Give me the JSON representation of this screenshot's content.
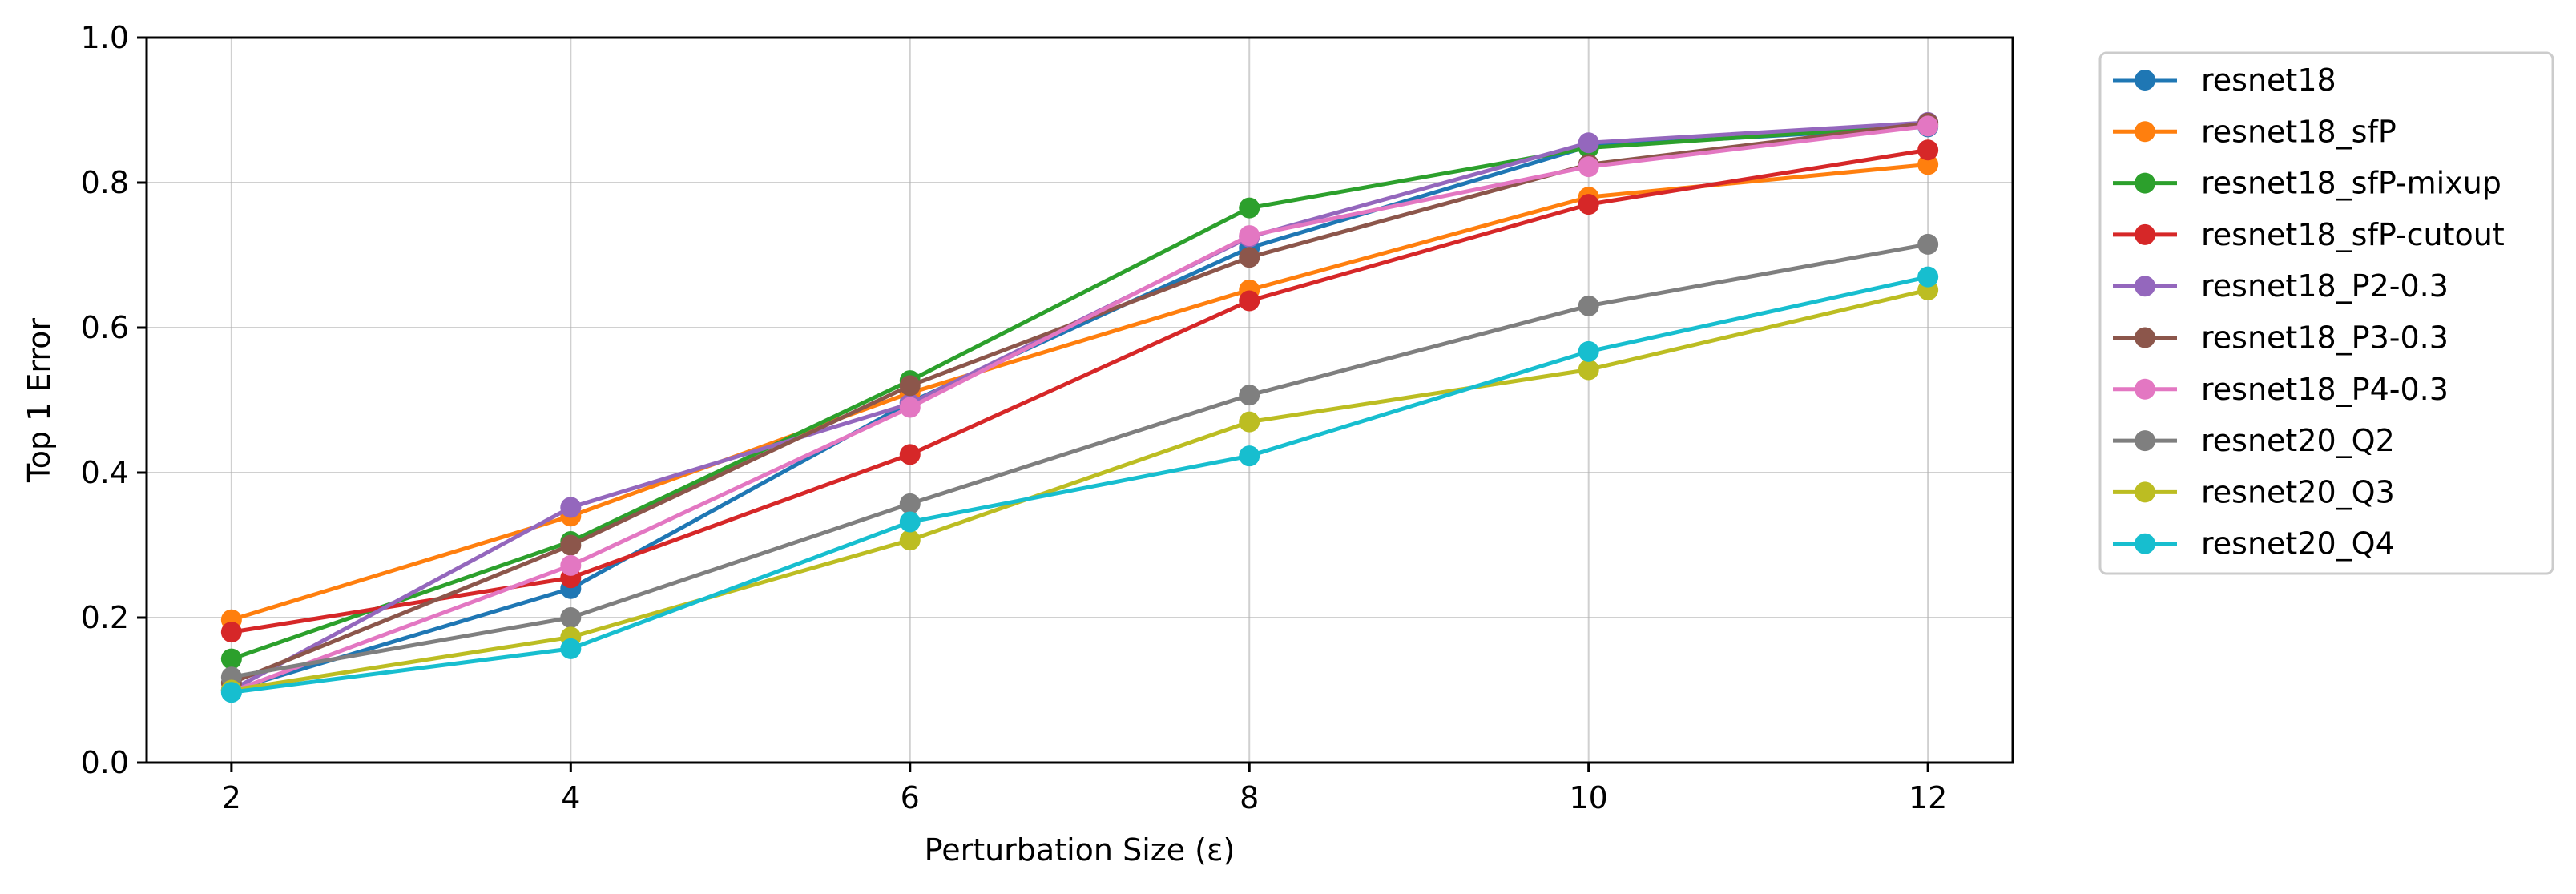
{
  "chart_data": {
    "type": "line",
    "title": "",
    "xlabel": "Perturbation Size (ε)",
    "ylabel": "Top 1 Error",
    "x": [
      2,
      4,
      6,
      8,
      10,
      12
    ],
    "xlim": [
      1.5,
      12.5
    ],
    "ylim": [
      0.0,
      1.0
    ],
    "xticks": [
      "2",
      "4",
      "6",
      "8",
      "10",
      "12"
    ],
    "yticks": [
      "0.0",
      "0.2",
      "0.4",
      "0.6",
      "0.8",
      "1.0"
    ],
    "grid": true,
    "legend_position": "outside-right",
    "series": [
      {
        "name": "resnet18",
        "color": "#1f77b4",
        "values": [
          0.1,
          0.24,
          0.497,
          0.71,
          0.85,
          0.877
        ]
      },
      {
        "name": "resnet18_sfP",
        "color": "#ff7f0e",
        "values": [
          0.197,
          0.34,
          0.51,
          0.652,
          0.78,
          0.825
        ]
      },
      {
        "name": "resnet18_sfP-mixup",
        "color": "#2ca02c",
        "values": [
          0.143,
          0.305,
          0.527,
          0.765,
          0.848,
          0.88
        ]
      },
      {
        "name": "resnet18_sfP-cutout",
        "color": "#d62728",
        "values": [
          0.18,
          0.255,
          0.425,
          0.637,
          0.77,
          0.845
        ]
      },
      {
        "name": "resnet18_P2-0.3",
        "color": "#9467bd",
        "values": [
          0.1,
          0.352,
          0.495,
          0.725,
          0.855,
          0.883
        ]
      },
      {
        "name": "resnet18_P3-0.3",
        "color": "#8c564b",
        "values": [
          0.11,
          0.3,
          0.52,
          0.697,
          0.825,
          0.882
        ]
      },
      {
        "name": "resnet18_P4-0.3",
        "color": "#e377c2",
        "values": [
          0.098,
          0.272,
          0.49,
          0.727,
          0.822,
          0.878
        ]
      },
      {
        "name": "resnet20_Q2",
        "color": "#7f7f7f",
        "values": [
          0.118,
          0.2,
          0.357,
          0.507,
          0.63,
          0.715
        ]
      },
      {
        "name": "resnet20_Q3",
        "color": "#bcbd22",
        "values": [
          0.1,
          0.173,
          0.307,
          0.47,
          0.542,
          0.652
        ]
      },
      {
        "name": "resnet20_Q4",
        "color": "#17becf",
        "values": [
          0.097,
          0.157,
          0.332,
          0.423,
          0.567,
          0.67
        ]
      }
    ]
  }
}
